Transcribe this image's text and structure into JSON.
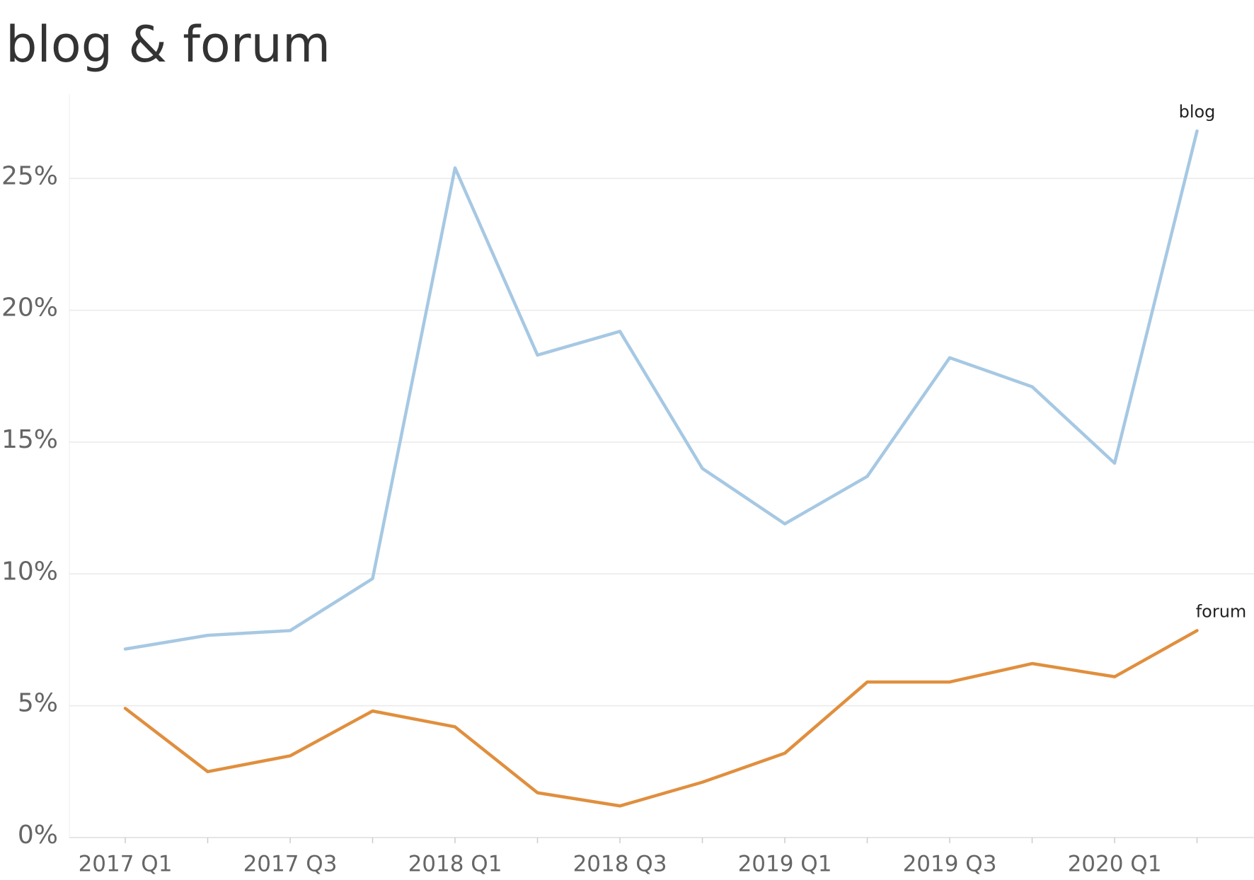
{
  "chart_data": {
    "type": "line",
    "title": "blog & forum",
    "categories": [
      "2017 Q1",
      null,
      "2017 Q3",
      null,
      "2018 Q1",
      null,
      "2018 Q3",
      null,
      "2019 Q1",
      null,
      "2019 Q3",
      null,
      "2020 Q1",
      null
    ],
    "series": [
      {
        "name": "blog",
        "color": "#a6c8e3",
        "values": [
          7.15,
          7.67,
          7.85,
          9.82,
          25.4,
          18.3,
          19.2,
          14.0,
          11.9,
          13.7,
          18.2,
          17.1,
          14.2,
          26.8
        ]
      },
      {
        "name": "forum",
        "color": "#e08f3e",
        "values": [
          4.9,
          2.5,
          3.1,
          4.8,
          4.2,
          1.7,
          1.2,
          2.1,
          3.2,
          5.9,
          5.9,
          6.6,
          6.1,
          7.85
        ]
      }
    ],
    "ylim": [
      0,
      28.2
    ],
    "yticks": [
      {
        "value": 0,
        "label": "0%"
      },
      {
        "value": 5,
        "label": "5%"
      },
      {
        "value": 10,
        "label": "10%"
      },
      {
        "value": 15,
        "label": "15%"
      },
      {
        "value": 20,
        "label": "20%"
      },
      {
        "value": 25,
        "label": "25%"
      }
    ],
    "grid": true
  }
}
